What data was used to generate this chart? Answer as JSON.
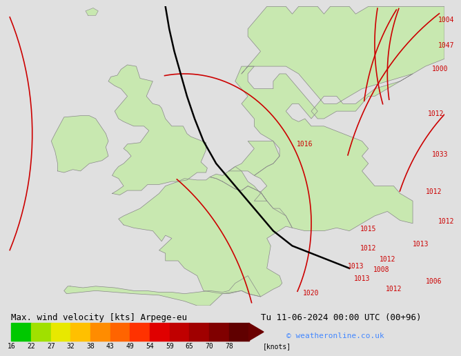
{
  "title_left": "Max. wind velocity [kts] Arpege-eu",
  "title_right": "Tu 11-06-2024 00:00 UTC (00+96)",
  "credit": "© weatheronline.co.uk",
  "colorbar_values": [
    16,
    22,
    27,
    32,
    38,
    43,
    49,
    54,
    59,
    65,
    70,
    78
  ],
  "colorbar_label": "[knots]",
  "colorbar_colors": [
    "#00c800",
    "#a0e000",
    "#e8e800",
    "#ffc000",
    "#ff8c00",
    "#ff6400",
    "#ff3200",
    "#e00000",
    "#c00000",
    "#a00000",
    "#800000",
    "#600000"
  ],
  "bg_color": "#e0e0e0",
  "land_color": "#c8e8b0",
  "border_color": "#888888",
  "isobar_color_red": "#cc0000",
  "isobar_color_black": "#000000",
  "title_fontsize": 9,
  "credit_fontsize": 8,
  "credit_color": "#4488ff",
  "label_color": "#cc0000",
  "lon_min": -14.0,
  "lon_max": 20.5,
  "lat_min": 42.5,
  "lat_max": 62.5
}
